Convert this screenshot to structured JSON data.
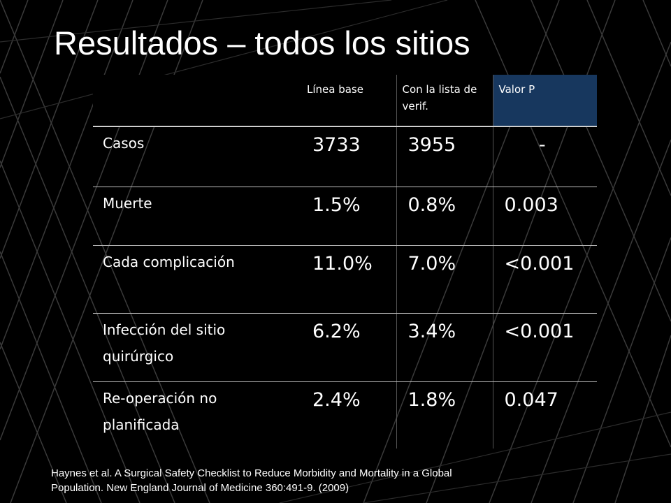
{
  "slide": {
    "title": "Resultados – todos los sitios",
    "citation_line1": "Haynes et al. A Surgical Safety Checklist to Reduce Morbidity and Mortality in a Global",
    "citation_line2": "Population. New England Journal of Medicine 360:491-9. (2009)"
  },
  "table": {
    "headers": [
      "",
      "Línea base",
      "Con la lista de verif.",
      "Valor P"
    ],
    "rows": [
      {
        "label": "Casos",
        "baseline": "3733",
        "checklist": "3955",
        "p": "-"
      },
      {
        "label": "Muerte",
        "baseline": "1.5%",
        "checklist": "0.8%",
        "p": "0.003"
      },
      {
        "label": "Cada complicación",
        "baseline": "11.0%",
        "checklist": "7.0%",
        "p": "<0.001"
      },
      {
        "label": "Infección del sitio quirúrgico",
        "baseline": "6.2%",
        "checklist": "3.4%",
        "p": "<0.001"
      },
      {
        "label": "Re-operación no planificada",
        "baseline": "2.4%",
        "checklist": "1.8%",
        "p": "0.047"
      }
    ]
  },
  "colors": {
    "background": "#000000",
    "text": "#ffffff",
    "header_highlight": "#17375e",
    "decor_stroke": "#3a3a3a"
  }
}
